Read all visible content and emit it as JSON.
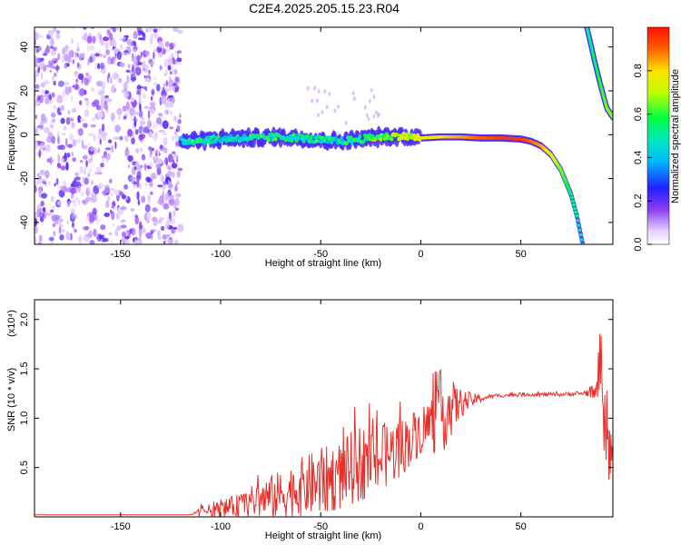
{
  "chart_data": [
    {
      "type": "heatmap",
      "title": "C2E4.2025.205.15.23.R04",
      "xlabel": "Height of straight line (km)",
      "ylabel": "Frequency (Hz)",
      "xlim": [
        -193,
        96
      ],
      "ylim": [
        -50,
        49
      ],
      "x_ticks": [
        -150,
        -100,
        -50,
        0,
        50
      ],
      "x_tick_labels": [
        "-150",
        "-100",
        "-50",
        "0",
        "50"
      ],
      "y_ticks": [
        -40,
        -20,
        0,
        20,
        40
      ],
      "y_tick_labels": [
        "-40",
        "-20",
        "0",
        "20",
        "40"
      ],
      "colorbar": {
        "label": "Normalized spectral amplitude",
        "range": [
          0.0,
          1.0
        ],
        "ticks": [
          0.0,
          0.2,
          0.4,
          0.6,
          0.8
        ],
        "tick_labels": [
          "0.0",
          "0.2",
          "0.4",
          "0.6",
          "0.8"
        ],
        "colormap": "rainbow"
      },
      "noise_region": {
        "x_from": -193,
        "x_to": -120,
        "intensity": 0.15
      },
      "signal_track": [
        {
          "x": -120,
          "y": -3,
          "intensity": 0.45
        },
        {
          "x": -110,
          "y": -2.5,
          "intensity": 0.5
        },
        {
          "x": -100,
          "y": -2,
          "intensity": 0.45
        },
        {
          "x": -90,
          "y": -1.5,
          "intensity": 0.45
        },
        {
          "x": -80,
          "y": -1.5,
          "intensity": 0.5
        },
        {
          "x": -70,
          "y": -1,
          "intensity": 0.5
        },
        {
          "x": -60,
          "y": -1.5,
          "intensity": 0.45
        },
        {
          "x": -50,
          "y": -2.5,
          "intensity": 0.5
        },
        {
          "x": -40,
          "y": -3,
          "intensity": 0.45
        },
        {
          "x": -30,
          "y": -2,
          "intensity": 0.55
        },
        {
          "x": -20,
          "y": -1,
          "intensity": 0.6
        },
        {
          "x": -10,
          "y": -0.5,
          "intensity": 0.7
        },
        {
          "x": 0,
          "y": -1.5,
          "intensity": 0.75
        },
        {
          "x": 10,
          "y": -1,
          "intensity": 0.8
        },
        {
          "x": 20,
          "y": -1,
          "intensity": 0.85
        },
        {
          "x": 30,
          "y": -1.5,
          "intensity": 0.9
        },
        {
          "x": 40,
          "y": -1.5,
          "intensity": 0.95
        },
        {
          "x": 50,
          "y": -2,
          "intensity": 0.95
        },
        {
          "x": 55,
          "y": -3,
          "intensity": 0.9
        },
        {
          "x": 60,
          "y": -5,
          "intensity": 0.85
        },
        {
          "x": 65,
          "y": -9,
          "intensity": 0.75
        },
        {
          "x": 70,
          "y": -16,
          "intensity": 0.65
        },
        {
          "x": 75,
          "y": -27,
          "intensity": 0.55
        },
        {
          "x": 78,
          "y": -37,
          "intensity": 0.5
        },
        {
          "x": 81,
          "y": -50,
          "intensity": 0.45
        }
      ],
      "secondary_track": [
        {
          "x": 83,
          "y": 49,
          "intensity": 0.5
        },
        {
          "x": 87,
          "y": 33,
          "intensity": 0.55
        },
        {
          "x": 90,
          "y": 22,
          "intensity": 0.6
        },
        {
          "x": 93,
          "y": 12,
          "intensity": 0.65
        },
        {
          "x": 96,
          "y": 8,
          "intensity": 0.65
        }
      ]
    },
    {
      "type": "line",
      "xlabel": "Height of straight line (km)",
      "ylabel": "SNR (10 * v/v)",
      "y_multiplier": "(x10⁴)",
      "xlim": [
        -193,
        96
      ],
      "ylim": [
        0,
        2.2
      ],
      "x_ticks": [
        -150,
        -100,
        -50,
        0,
        50
      ],
      "x_tick_labels": [
        "-150",
        "-100",
        "-50",
        "0",
        "50"
      ],
      "y_ticks": [
        0.5,
        1.0,
        1.5,
        2.0
      ],
      "y_tick_labels": [
        "0.5",
        "1.0",
        "1.5",
        "2.0"
      ],
      "color": "#e8302a",
      "series": [
        {
          "x": [
            -193,
            -160,
            -130,
            -115,
            -110,
            -100,
            -90,
            -80,
            -70,
            -60,
            -50,
            -40,
            -30,
            -20,
            -10,
            0,
            5,
            10,
            15,
            20,
            25,
            30,
            35,
            40,
            50,
            60,
            70,
            80,
            85,
            88,
            90,
            92,
            94,
            96
          ],
          "y": [
            0.02,
            0.02,
            0.02,
            0.02,
            0.05,
            0.08,
            0.12,
            0.18,
            0.22,
            0.3,
            0.35,
            0.42,
            0.55,
            0.6,
            0.7,
            0.88,
            0.95,
            1.05,
            1.1,
            1.15,
            1.18,
            1.2,
            1.22,
            1.23,
            1.24,
            1.24,
            1.24,
            1.25,
            1.26,
            1.25,
            1.8,
            0.8,
            0.6,
            0.7
          ],
          "spread": [
            0.0,
            0.0,
            0.0,
            0.0,
            0.05,
            0.08,
            0.12,
            0.2,
            0.25,
            0.3,
            0.35,
            0.35,
            0.4,
            0.35,
            0.3,
            0.25,
            0.3,
            0.45,
            0.3,
            0.15,
            0.08,
            0.04,
            0.02,
            0.02,
            0.02,
            0.02,
            0.02,
            0.02,
            0.05,
            0.1,
            0.45,
            0.4,
            0.4,
            0.35
          ]
        }
      ]
    }
  ]
}
